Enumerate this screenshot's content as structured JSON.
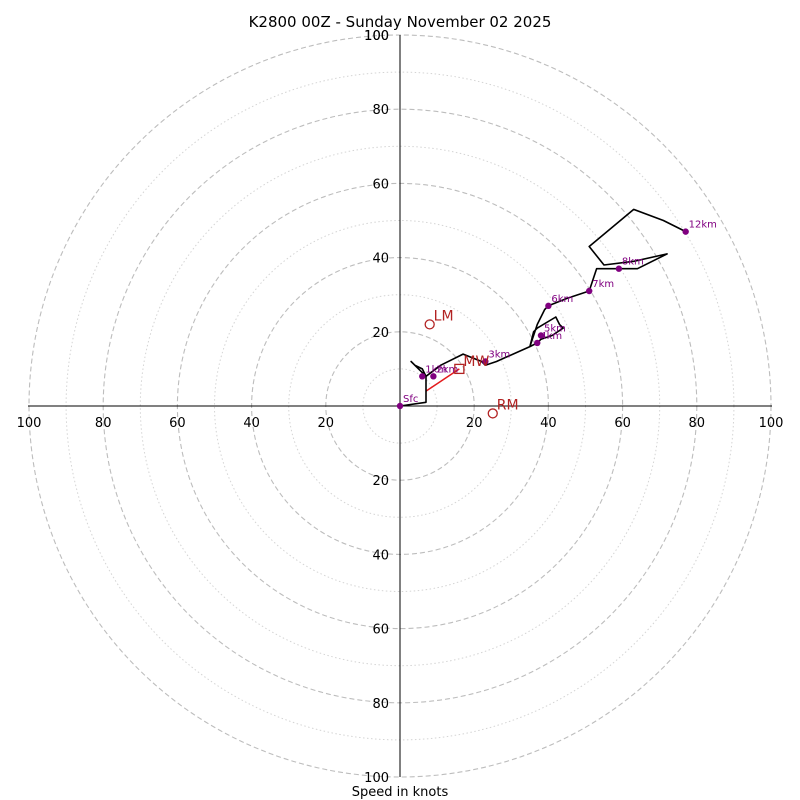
{
  "chart_data": {
    "type": "hodograph",
    "title": "K2800 00Z - Sunday November 02 2025",
    "xlabel": "Speed in knots",
    "range": [
      -100,
      100
    ],
    "major_rings": [
      20,
      40,
      60,
      80,
      100
    ],
    "minor_rings": [
      10,
      30,
      50,
      70,
      90
    ],
    "x_tick_labels": [
      "100",
      "80",
      "60",
      "40",
      "20",
      "20",
      "40",
      "60",
      "80",
      "100"
    ],
    "y_tick_labels": [
      "100",
      "80",
      "60",
      "40",
      "20",
      "20",
      "40",
      "60",
      "80",
      "100"
    ],
    "x_tick_values": [
      -100,
      -80,
      -60,
      -40,
      -20,
      20,
      40,
      60,
      80,
      100
    ],
    "y_tick_values": [
      100,
      80,
      60,
      40,
      20,
      -20,
      -40,
      -60,
      -80,
      -100
    ],
    "hodograph": [
      [
        0,
        0
      ],
      [
        7,
        1
      ],
      [
        7,
        8
      ],
      [
        5,
        10
      ],
      [
        3,
        12
      ],
      [
        4,
        11
      ],
      [
        6,
        10
      ],
      [
        7,
        8
      ],
      [
        11,
        11
      ],
      [
        17,
        14
      ],
      [
        22,
        12
      ],
      [
        23,
        11
      ],
      [
        26,
        12
      ],
      [
        35,
        16
      ],
      [
        36,
        20
      ],
      [
        37,
        21
      ],
      [
        42,
        24
      ],
      [
        43,
        22
      ],
      [
        44,
        21
      ],
      [
        41,
        19
      ],
      [
        38,
        18
      ],
      [
        37,
        17
      ],
      [
        35,
        16
      ],
      [
        37,
        22
      ],
      [
        39,
        26
      ],
      [
        40,
        27
      ],
      [
        45,
        29
      ],
      [
        51,
        31
      ],
      [
        53,
        37
      ],
      [
        58,
        37
      ],
      [
        64,
        37
      ],
      [
        72,
        41
      ],
      [
        63,
        39
      ],
      [
        55,
        38
      ],
      [
        51,
        43
      ],
      [
        63,
        53
      ],
      [
        71,
        50
      ],
      [
        77,
        47
      ]
    ],
    "height_markers": [
      {
        "label": "Sfc",
        "u": 0,
        "v": 0
      },
      {
        "label": "1km",
        "u": 6,
        "v": 8
      },
      {
        "label": "2km",
        "u": 9,
        "v": 8
      },
      {
        "label": "3km",
        "u": 23,
        "v": 12
      },
      {
        "label": "4km",
        "u": 37,
        "v": 17
      },
      {
        "label": "5km",
        "u": 38,
        "v": 19
      },
      {
        "label": "6km",
        "u": 40,
        "v": 27
      },
      {
        "label": "7km",
        "u": 51,
        "v": 31
      },
      {
        "label": "8km",
        "u": 59,
        "v": 37
      },
      {
        "label": "12km",
        "u": 77,
        "v": 47
      }
    ],
    "storm_motion": {
      "RM": {
        "label": "RM",
        "u": 25,
        "v": -2
      },
      "LM": {
        "label": "LM",
        "u": 8,
        "v": 22
      },
      "MW": {
        "label": "MW",
        "u": 16,
        "v": 10
      }
    },
    "colors": {
      "hodograph": "#000000",
      "height_markers": "#800080",
      "storm_motion": "#b22222",
      "bunkers_line": "#e31a1c",
      "rings": "#bdbdbd"
    }
  }
}
